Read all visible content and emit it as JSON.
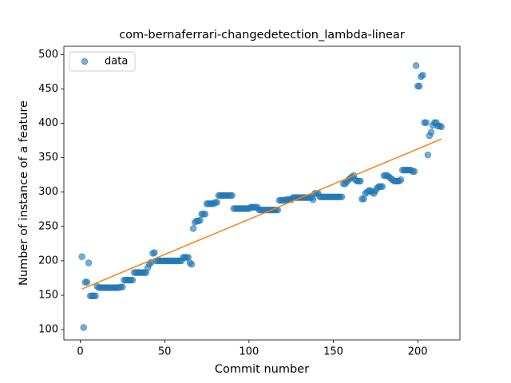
{
  "chart_data": {
    "type": "scatter",
    "title": "com-bernaferrari-changedetection_lambda-linear",
    "xlabel": "Commit number",
    "ylabel": "Number of instance of a feature",
    "xlim": [
      -9.7,
      225
    ],
    "ylim": [
      85,
      512
    ],
    "xticks": [
      0,
      50,
      100,
      150,
      200
    ],
    "yticks": [
      100,
      150,
      200,
      250,
      300,
      350,
      400,
      450,
      500
    ],
    "legend": "upper left",
    "series": [
      {
        "name": "data",
        "color": "#1f77b4",
        "x": [
          1,
          2,
          3,
          4,
          5,
          6,
          7,
          8,
          9,
          10,
          11,
          12,
          13,
          14,
          15,
          16,
          17,
          18,
          19,
          20,
          21,
          22,
          23,
          24,
          25,
          26,
          27,
          28,
          29,
          30,
          31,
          32,
          33,
          34,
          35,
          36,
          37,
          38,
          39,
          40,
          41,
          42,
          43,
          44,
          45,
          46,
          47,
          48,
          49,
          50,
          51,
          52,
          53,
          54,
          55,
          56,
          57,
          58,
          59,
          60,
          61,
          62,
          63,
          64,
          65,
          66,
          67,
          68,
          69,
          70,
          71,
          72,
          73,
          74,
          75,
          76,
          77,
          78,
          79,
          80,
          81,
          82,
          83,
          84,
          85,
          86,
          87,
          88,
          89,
          90,
          91,
          92,
          93,
          94,
          95,
          96,
          97,
          98,
          99,
          100,
          101,
          102,
          103,
          104,
          105,
          106,
          107,
          108,
          109,
          110,
          111,
          112,
          113,
          114,
          115,
          116,
          117,
          118,
          119,
          120,
          121,
          122,
          123,
          124,
          125,
          126,
          127,
          128,
          129,
          130,
          131,
          132,
          133,
          134,
          135,
          136,
          137,
          138,
          139,
          140,
          141,
          142,
          143,
          144,
          145,
          146,
          147,
          148,
          149,
          150,
          151,
          152,
          153,
          154,
          155,
          156,
          157,
          158,
          159,
          160,
          161,
          162,
          163,
          164,
          165,
          166,
          167,
          168,
          169,
          170,
          171,
          172,
          173,
          174,
          175,
          176,
          177,
          178,
          179,
          180,
          181,
          182,
          183,
          184,
          185,
          186,
          187,
          188,
          189,
          190,
          191,
          192,
          193,
          194,
          195,
          196,
          197,
          198,
          199,
          200,
          201,
          202,
          203,
          204,
          205,
          206,
          207,
          208,
          209,
          210,
          211,
          212,
          213,
          214
        ],
        "values": [
          206,
          103,
          169,
          169,
          197,
          149,
          149,
          149,
          149,
          163,
          161,
          161,
          161,
          161,
          161,
          161,
          161,
          161,
          161,
          161,
          161,
          161,
          161,
          162,
          162,
          172,
          172,
          172,
          172,
          172,
          172,
          183,
          183,
          183,
          183,
          183,
          183,
          183,
          183,
          190,
          195,
          198,
          211,
          212,
          200,
          200,
          200,
          200,
          200,
          200,
          200,
          200,
          200,
          200,
          200,
          200,
          200,
          200,
          200,
          200,
          205,
          205,
          205,
          205,
          197,
          195,
          247,
          256,
          258,
          258,
          259,
          268,
          268,
          268,
          283,
          283,
          283,
          283,
          283,
          285,
          285,
          295,
          295,
          295,
          295,
          295,
          295,
          295,
          295,
          295,
          276,
          276,
          276,
          276,
          276,
          276,
          276,
          276,
          276,
          276,
          278,
          278,
          278,
          278,
          278,
          274,
          274,
          274,
          274,
          274,
          274,
          274,
          274,
          274,
          274,
          274,
          274,
          288,
          288,
          288,
          288,
          289,
          289,
          289,
          289,
          292,
          292,
          292,
          292,
          292,
          292,
          292,
          292,
          292,
          292,
          292,
          292,
          289,
          298,
          298,
          298,
          293,
          293,
          293,
          293,
          293,
          293,
          293,
          293,
          293,
          293,
          293,
          293,
          293,
          293,
          312,
          312,
          315,
          318,
          320,
          322,
          324,
          318,
          316,
          316,
          316,
          290,
          290,
          298,
          300,
          302,
          302,
          300,
          298,
          302,
          306,
          308,
          308,
          308,
          324,
          324,
          324,
          322,
          320,
          318,
          316,
          316,
          316,
          316,
          318,
          332,
          332,
          332,
          332,
          332,
          332,
          330,
          330,
          484,
          454,
          454,
          468,
          470,
          401,
          401,
          354,
          382,
          387,
          397,
          401,
          401,
          396,
          396,
          395
        ]
      }
    ],
    "fit": {
      "color": "#ff7f0e",
      "x": [
        1,
        214
      ],
      "values": [
        159,
        377
      ]
    }
  }
}
